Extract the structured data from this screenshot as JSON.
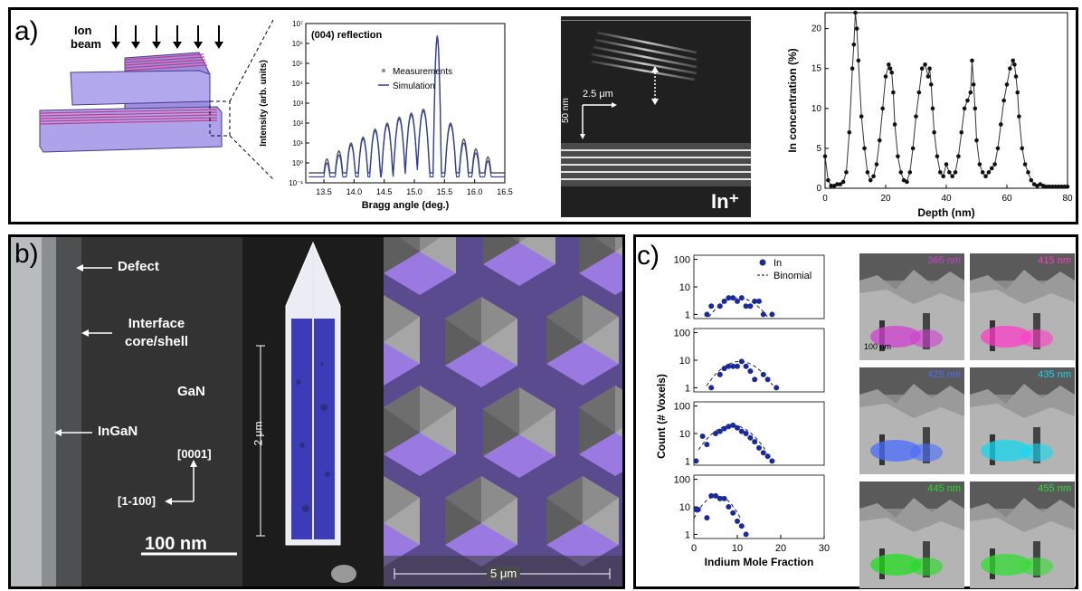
{
  "panel_a": {
    "label": "a)",
    "schematic": {
      "ion_beam_label": "Ion\nbeam"
    },
    "xrd": {
      "title": "(004) reflection",
      "legend": [
        "Measurements",
        "Simulation"
      ]
    },
    "tem": {
      "scale_h": "2.5 μm",
      "scale_v": "50 nm",
      "ion_label": "In⁺"
    }
  },
  "panel_b": {
    "label": "b)",
    "tem": {
      "labels": [
        "Defect",
        "Interface\ncore/shell",
        "GaN",
        "InGaN",
        "[0001]",
        "[1-100]"
      ],
      "scale": "100 nm"
    },
    "nanowire": {
      "scale": "2 μm"
    },
    "sem": {
      "scale": "5 μm"
    }
  },
  "panel_c": {
    "label": "c)",
    "histogram_legend": [
      "In",
      "Binomial"
    ],
    "ylabel": "Count (# Voxels)",
    "xlabel": "Indium Mole Fraction",
    "cl_images": [
      {
        "wavelength": "365 nm",
        "color": "#d040d0"
      },
      {
        "wavelength": "415 nm",
        "color": "#ff3cc8"
      },
      {
        "wavelength": "425 nm",
        "color": "#4a6cff"
      },
      {
        "wavelength": "435 nm",
        "color": "#16d8f0"
      },
      {
        "wavelength": "445 nm",
        "color": "#22dd22"
      },
      {
        "wavelength": "455 nm",
        "color": "#33dd33"
      }
    ],
    "cl_scale": "100 nm"
  },
  "chart_data": [
    {
      "type": "line",
      "id": "xrd",
      "title": "(004) reflection",
      "xlabel": "Bragg angle (deg.)",
      "ylabel": "Intensity (arb. units)",
      "xlim": [
        13.2,
        16.5
      ],
      "ylim_log": [
        -1,
        7
      ],
      "xticks": [
        "13.5",
        "14.0",
        "14.5",
        "15.0",
        "15.5",
        "16.0",
        "16.5"
      ],
      "yticks": [
        "10⁻¹",
        "10⁰",
        "10¹",
        "10²",
        "10³",
        "10⁴",
        "10⁵",
        "10⁶",
        "10⁷"
      ],
      "series": [
        {
          "name": "Measurements",
          "peaks": [
            13.55,
            13.75,
            13.95,
            14.15,
            14.35,
            14.55,
            14.75,
            14.95,
            15.15,
            15.38,
            15.6,
            15.82,
            16.02,
            16.22
          ],
          "peak_log": [
            0.2,
            0.6,
            1.0,
            1.3,
            1.7,
            2.0,
            2.3,
            2.5,
            2.7,
            6.3,
            2.0,
            1.2,
            0.7,
            0.3
          ]
        },
        {
          "name": "Simulation",
          "peaks": [
            13.55,
            13.75,
            13.95,
            14.15,
            14.35,
            14.55,
            14.75,
            14.95,
            15.15,
            15.38,
            15.6,
            15.82,
            16.02,
            16.22
          ],
          "peak_log": [
            0.0,
            0.4,
            0.9,
            1.2,
            1.6,
            1.9,
            2.2,
            2.4,
            2.6,
            6.4,
            1.9,
            1.0,
            0.5,
            0.1
          ]
        }
      ]
    },
    {
      "type": "line",
      "id": "in_profile",
      "xlabel": "Depth (nm)",
      "ylabel": "In concentration (%)",
      "xlim": [
        0,
        80
      ],
      "ylim": [
        0,
        22
      ],
      "xticks": [
        "0",
        "20",
        "40",
        "60",
        "80"
      ],
      "yticks": [
        "0",
        "5",
        "10",
        "15",
        "20"
      ],
      "series": [
        {
          "name": "",
          "x": [
            0,
            1,
            2,
            3,
            4,
            5,
            6,
            7,
            8,
            9,
            9.5,
            10,
            10.5,
            11,
            12,
            13,
            14,
            15,
            16,
            17,
            18,
            19,
            20,
            21,
            21.5,
            22,
            22.5,
            23,
            24,
            25,
            26,
            27,
            28,
            29,
            30,
            31,
            32,
            33,
            34,
            34.5,
            35,
            35.5,
            36,
            37,
            38,
            39,
            40,
            41,
            42,
            43,
            44,
            45,
            46,
            47,
            48,
            48.5,
            49,
            49.5,
            50,
            51,
            52,
            53,
            54,
            55,
            56,
            57,
            58,
            59,
            60,
            61,
            62,
            62.5,
            63,
            63.5,
            64,
            65,
            66,
            67,
            68,
            69,
            70,
            71,
            72,
            73,
            74,
            75,
            76,
            77,
            78,
            79,
            80
          ],
          "y": [
            4,
            1,
            0.3,
            0.3,
            0.5,
            0.5,
            0.8,
            2,
            7,
            15,
            18,
            22,
            20,
            16,
            9,
            5,
            2,
            1,
            1.5,
            3,
            6,
            10,
            14,
            15.5,
            15,
            14.5,
            12,
            8,
            4,
            2,
            1,
            0.8,
            2,
            5,
            9,
            12,
            15,
            15.5,
            14,
            15,
            13,
            10,
            7,
            4,
            2,
            1.5,
            3,
            2,
            1.5,
            2,
            4,
            7,
            10,
            11,
            12,
            16,
            13,
            10,
            6,
            3,
            2,
            1.5,
            2,
            2.5,
            3,
            5,
            8,
            11,
            13,
            15,
            16,
            15.5,
            14,
            12,
            9,
            5,
            3,
            2,
            1,
            0.5,
            0.3,
            0.5,
            0.3,
            0.2,
            0.2,
            0.2,
            0.2,
            0.2,
            0.2,
            0.2,
            0.2
          ]
        }
      ]
    },
    {
      "type": "scatter",
      "id": "cl_histograms",
      "xlabel": "Indium Mole Fraction",
      "ylabel": "Count (# Voxels)",
      "xlim": [
        0,
        30
      ],
      "xticks": [
        "0",
        "10",
        "20",
        "30"
      ],
      "yticks": [
        "1",
        "10",
        "100"
      ],
      "subplots": [
        {
          "x": [
            3,
            4,
            6,
            7,
            8,
            9,
            10,
            11,
            12,
            13,
            14,
            15,
            16,
            18
          ],
          "y": [
            1,
            2,
            2,
            3,
            4,
            4,
            3,
            4,
            2,
            2,
            3,
            3,
            1,
            1
          ]
        },
        {
          "x": [
            4,
            6,
            7,
            8,
            9,
            10,
            11,
            12,
            13,
            14,
            16,
            17,
            19
          ],
          "y": [
            1,
            3,
            5,
            6,
            6,
            6,
            9,
            6,
            4,
            2,
            3,
            2,
            1
          ]
        },
        {
          "x": [
            0.5,
            2,
            3,
            5,
            6,
            7,
            8,
            9,
            10,
            11,
            12,
            13,
            14,
            15,
            16,
            17,
            18
          ],
          "y": [
            1,
            8,
            4,
            10,
            12,
            15,
            18,
            20,
            16,
            12,
            10,
            7,
            5,
            3,
            2,
            1.5,
            1
          ]
        },
        {
          "x": [
            0.5,
            1,
            3,
            4,
            5,
            6,
            7,
            8,
            9,
            10,
            11,
            12
          ],
          "y": [
            8,
            8,
            4,
            25,
            25,
            20,
            20,
            10,
            6,
            3,
            2,
            1
          ]
        }
      ]
    }
  ]
}
